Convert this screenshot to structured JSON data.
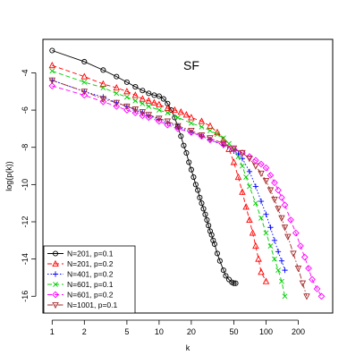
{
  "chart_data": {
    "type": "line",
    "title": "SF",
    "xlabel": "k",
    "ylabel": "log(p(k))",
    "x_scale": "log",
    "xlim": [
      0.82,
      420
    ],
    "ylim": [
      -16.9,
      -2.2
    ],
    "x_ticks": [
      1,
      2,
      5,
      10,
      20,
      50,
      100,
      200
    ],
    "y_ticks": [
      -16,
      -14,
      -12,
      -10,
      -8,
      -6,
      -4
    ],
    "legend_position": "bottom-left",
    "series": [
      {
        "name": "N=201, p=0.1",
        "color": "#000000",
        "marker": "circle",
        "line": "solid",
        "x": [
          1,
          2,
          3,
          4,
          5,
          6,
          7,
          8,
          9,
          10,
          11,
          12,
          13,
          14,
          15,
          16,
          17,
          18,
          19,
          20,
          21,
          22,
          23,
          24,
          25,
          26,
          27,
          28,
          29,
          30,
          31,
          32,
          33,
          35,
          37,
          40,
          42,
          45,
          48,
          50,
          52
        ],
        "y": [
          -2.8,
          -3.4,
          -3.85,
          -4.2,
          -4.5,
          -4.75,
          -4.95,
          -5.1,
          -5.2,
          -5.25,
          -5.4,
          -5.65,
          -6.0,
          -6.4,
          -6.9,
          -7.4,
          -7.9,
          -8.3,
          -8.8,
          -9.2,
          -9.6,
          -10.0,
          -10.3,
          -10.7,
          -11.0,
          -11.3,
          -11.6,
          -11.9,
          -12.2,
          -12.5,
          -12.7,
          -13.0,
          -13.2,
          -13.7,
          -14.1,
          -14.6,
          -14.9,
          -15.1,
          -15.25,
          -15.3,
          -15.3
        ]
      },
      {
        "name": "N=201, p=0.2",
        "color": "#ff0000",
        "marker": "triangle",
        "line": "dashed",
        "x": [
          1,
          2,
          3,
          4,
          5,
          6,
          7,
          8,
          9,
          10,
          12,
          14,
          16,
          18,
          20,
          25,
          30,
          35,
          40,
          45,
          50,
          55,
          60,
          65,
          70,
          75,
          80,
          85,
          90,
          100
        ],
        "y": [
          -3.6,
          -4.2,
          -4.6,
          -4.8,
          -5.0,
          -5.2,
          -5.4,
          -5.5,
          -5.6,
          -5.7,
          -5.9,
          -6.0,
          -6.1,
          -6.25,
          -6.4,
          -6.6,
          -6.85,
          -7.2,
          -7.6,
          -8.1,
          -8.8,
          -9.6,
          -10.4,
          -11.2,
          -11.9,
          -12.6,
          -13.3,
          -14.0,
          -14.7,
          -15.2
        ]
      },
      {
        "name": "N=401, p=0.2",
        "color": "#0000ff",
        "marker": "plus",
        "line": "dotted",
        "x": [
          1,
          2,
          3,
          4,
          5,
          6,
          7,
          8,
          10,
          12,
          15,
          20,
          25,
          30,
          40,
          50,
          55,
          60,
          70,
          80,
          90,
          100,
          110,
          120,
          130,
          140,
          150
        ],
        "y": [
          -4.4,
          -5.0,
          -5.3,
          -5.6,
          -5.8,
          -6.0,
          -6.15,
          -6.3,
          -6.5,
          -6.7,
          -6.9,
          -7.2,
          -7.4,
          -7.6,
          -7.9,
          -8.2,
          -8.35,
          -8.6,
          -9.3,
          -10.1,
          -10.9,
          -11.6,
          -12.3,
          -13.0,
          -13.6,
          -14.1,
          -14.6
        ]
      },
      {
        "name": "N=601, p=0.1",
        "color": "#00cc00",
        "marker": "cross",
        "line": "dashed",
        "x": [
          1,
          2,
          3,
          4,
          5,
          6,
          7,
          8,
          10,
          12,
          15,
          20,
          25,
          30,
          35,
          40,
          45,
          50,
          55,
          60,
          65,
          70,
          80,
          90,
          100,
          110,
          120,
          130,
          140,
          150
        ],
        "y": [
          -3.9,
          -4.5,
          -4.8,
          -5.1,
          -5.3,
          -5.5,
          -5.65,
          -5.8,
          -6.0,
          -6.15,
          -6.4,
          -6.7,
          -6.9,
          -7.1,
          -7.3,
          -7.5,
          -7.8,
          -8.1,
          -8.5,
          -9.0,
          -9.6,
          -10.1,
          -11.0,
          -11.8,
          -12.6,
          -13.3,
          -14.0,
          -14.6,
          -15.2,
          -16.0
        ]
      },
      {
        "name": "N=601, p=0.2",
        "color": "#ff00ff",
        "marker": "diamond",
        "line": "dashed",
        "x": [
          1,
          2,
          3,
          4,
          5,
          6,
          7,
          8,
          10,
          12,
          15,
          20,
          25,
          30,
          40,
          50,
          60,
          70,
          80,
          90,
          100,
          110,
          120,
          130,
          140,
          150,
          170,
          190,
          210,
          230,
          250,
          270,
          300,
          330
        ],
        "y": [
          -4.7,
          -5.2,
          -5.55,
          -5.8,
          -6.0,
          -6.15,
          -6.3,
          -6.4,
          -6.6,
          -6.8,
          -7.0,
          -7.2,
          -7.4,
          -7.6,
          -7.85,
          -8.1,
          -8.3,
          -8.5,
          -8.7,
          -8.9,
          -9.1,
          -9.5,
          -9.9,
          -10.3,
          -10.7,
          -11.1,
          -11.9,
          -12.6,
          -13.3,
          -13.9,
          -14.5,
          -15.1,
          -15.6,
          -16.0
        ]
      },
      {
        "name": "N=1001, p=0.1",
        "color": "#a52a2a",
        "marker": "triangle-down",
        "line": "dotdash",
        "x": [
          1,
          2,
          3,
          4,
          5,
          6,
          7,
          8,
          10,
          12,
          15,
          20,
          25,
          30,
          40,
          50,
          60,
          70,
          80,
          90,
          100,
          110,
          120,
          130,
          140,
          150,
          160,
          180,
          200,
          220,
          240
        ],
        "y": [
          -4.4,
          -5.0,
          -5.4,
          -5.6,
          -5.8,
          -5.95,
          -6.1,
          -6.25,
          -6.45,
          -6.6,
          -6.85,
          -7.1,
          -7.35,
          -7.5,
          -7.8,
          -8.05,
          -8.3,
          -8.6,
          -9.0,
          -9.4,
          -9.8,
          -10.3,
          -10.8,
          -11.3,
          -11.8,
          -12.3,
          -12.8,
          -13.7,
          -14.5,
          -15.3,
          -16.0
        ]
      }
    ]
  }
}
